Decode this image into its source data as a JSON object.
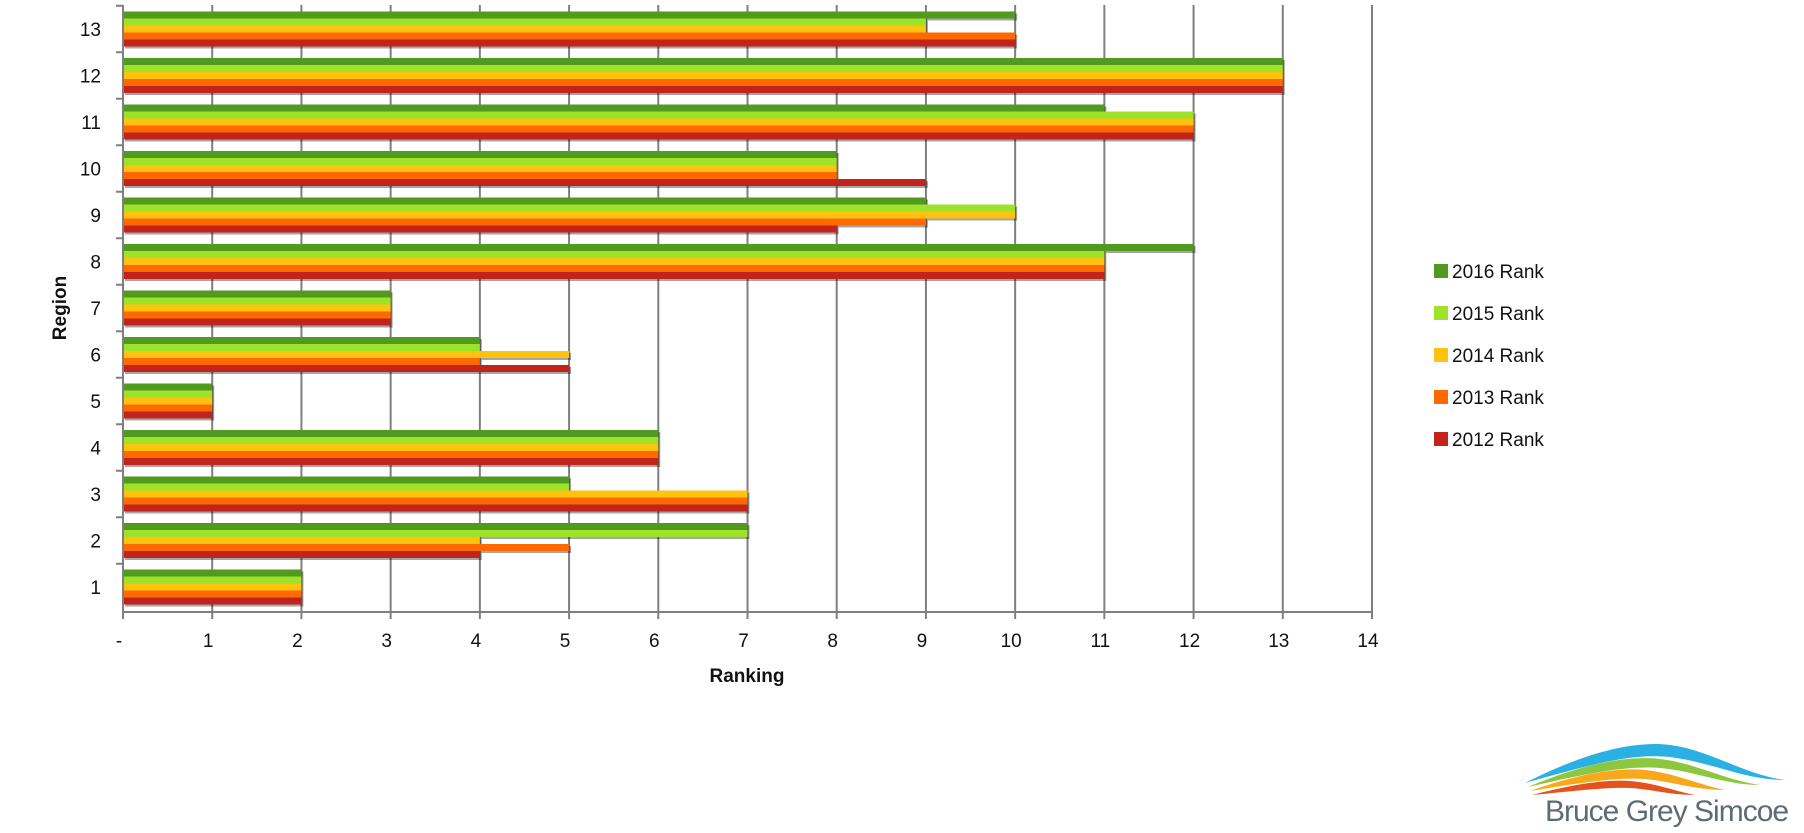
{
  "colors": {
    "accent_stripe": [
      "#2e94c4",
      "#9acd32",
      "#f47a1f",
      "#a51c1c"
    ],
    "grid": "#7f7f7f",
    "series": {
      "2016 Rank": "#4f9a1f",
      "2015 Rank": "#9fe22a",
      "2014 Rank": "#ffc20e",
      "2013 Rank": "#ff6a00",
      "2012 Rank": "#c0241c"
    }
  },
  "logo": {
    "text": "Bruce Grey Simcoe",
    "icon": "wave-swoosh-icon"
  },
  "chart_data": {
    "type": "bar",
    "orientation": "horizontal",
    "title": "",
    "xlabel": "Ranking",
    "ylabel": "Region",
    "xlim": [
      0,
      14
    ],
    "x_tick_labels": [
      "-",
      "1",
      "2",
      "3",
      "4",
      "5",
      "6",
      "7",
      "8",
      "9",
      "10",
      "11",
      "12",
      "13",
      "14"
    ],
    "categories": [
      "1",
      "2",
      "3",
      "4",
      "5",
      "6",
      "7",
      "8",
      "9",
      "10",
      "11",
      "12",
      "13"
    ],
    "grid": true,
    "legend_position": "right",
    "series": [
      {
        "name": "2016 Rank",
        "values": [
          2,
          7,
          5,
          6,
          1,
          4,
          3,
          12,
          9,
          8,
          11,
          13,
          10
        ]
      },
      {
        "name": "2015 Rank",
        "values": [
          2,
          7,
          5,
          6,
          1,
          4,
          3,
          11,
          10,
          8,
          12,
          13,
          9
        ]
      },
      {
        "name": "2014 Rank",
        "values": [
          2,
          4,
          7,
          6,
          1,
          5,
          3,
          11,
          10,
          8,
          12,
          13,
          9
        ]
      },
      {
        "name": "2013 Rank",
        "values": [
          2,
          5,
          7,
          6,
          1,
          4,
          3,
          11,
          9,
          8,
          12,
          13,
          10
        ]
      },
      {
        "name": "2012 Rank",
        "values": [
          2,
          4,
          7,
          6,
          1,
          5,
          3,
          11,
          8,
          9,
          12,
          13,
          10
        ]
      }
    ]
  }
}
